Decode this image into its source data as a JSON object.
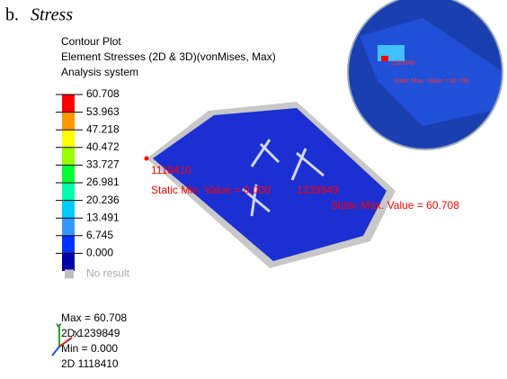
{
  "heading": {
    "label": "b.",
    "title": "Stress"
  },
  "legend": {
    "title_lines": [
      "Contour Plot",
      "Element Stresses (2D & 3D)(vonMises, Max)",
      "Analysis system"
    ],
    "levels": [
      "60.708",
      "53.963",
      "47.218",
      "40.472",
      "33.727",
      "26.981",
      "20.236",
      "13.491",
      "6.745",
      "0.000"
    ],
    "band_colors": [
      "#ff0000",
      "#ff9900",
      "#ffff00",
      "#99ff00",
      "#00ff33",
      "#00ffaa",
      "#00ccff",
      "#3399ff",
      "#0033ff",
      "#0000aa"
    ],
    "no_result": {
      "label": "No result",
      "color": "#c0c0c0"
    }
  },
  "summary": [
    "Max = 60.708",
    "2D 1239849",
    "Min = 0.000",
    "2D 1118410"
  ],
  "triad": [
    "Y",
    "X"
  ],
  "annotations": {
    "min_id": "1118410",
    "min_text": "Static Min. Value =  0.000",
    "max_id": "1239849",
    "max_text": "Static Max. Value =  60.708"
  },
  "inset": {
    "id": "1239849",
    "text": "Static Max. Value = 60.708"
  }
}
